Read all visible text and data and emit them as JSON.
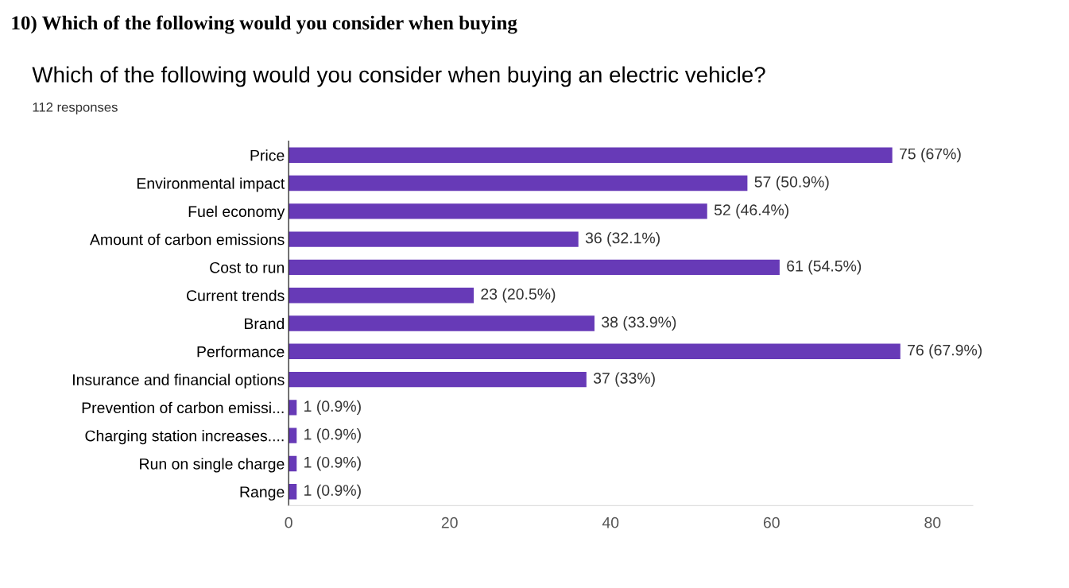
{
  "chart_data": {
    "type": "bar",
    "orientation": "horizontal",
    "title": "Which of the following would you consider when buying an electric vehicle?",
    "subtitle": "112 responses",
    "annotations": [
      "10) Which of the following would you consider when buying"
    ],
    "categories": [
      "Price",
      "Environmental impact",
      "Fuel economy",
      "Amount of carbon emissions",
      "Cost to run",
      "Current trends",
      "Brand",
      "Performance",
      "Insurance and financial options",
      "Prevention of carbon emissi...",
      "Charging station increases....",
      "Run on single charge",
      "Range"
    ],
    "values": [
      75,
      57,
      52,
      36,
      61,
      23,
      38,
      76,
      37,
      1,
      1,
      1,
      1
    ],
    "value_labels": [
      "75 (67%)",
      "57 (50.9%)",
      "52 (46.4%)",
      "36 (32.1%)",
      "61 (54.5%)",
      "23 (20.5%)",
      "38 (33.9%)",
      "76 (67.9%)",
      "37 (33%)",
      "1 (0.9%)",
      "1 (0.9%)",
      "1 (0.9%)",
      "1 (0.9%)"
    ],
    "color": "#673ab7",
    "xlim": [
      0,
      85
    ],
    "xticks": [
      0,
      20,
      40,
      60,
      80
    ],
    "grid": false
  }
}
